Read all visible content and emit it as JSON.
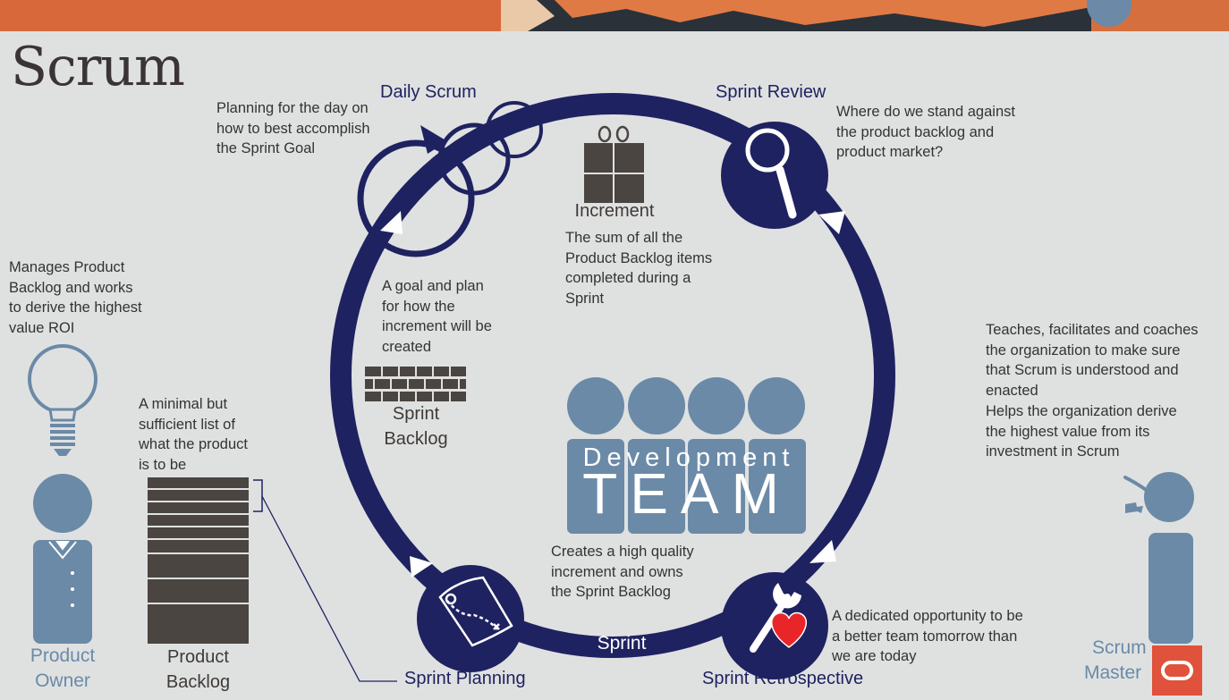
{
  "title": "Scrum",
  "events": {
    "daily_scrum": {
      "label": "Daily Scrum",
      "desc": [
        "Planning for the day on",
        "how to best accomplish",
        "the Sprint Goal"
      ]
    },
    "sprint_review": {
      "label": "Sprint Review",
      "desc": [
        "Where do we stand against",
        "the product backlog and",
        "product market?"
      ]
    },
    "sprint_planning": {
      "label": "Sprint Planning"
    },
    "sprint_retrospective": {
      "label": "Sprint Retrospective",
      "desc": [
        "A dedicated opportunity to be",
        "a better team tomorrow than",
        "we are today"
      ]
    },
    "sprint": {
      "label": "Sprint"
    }
  },
  "artifacts": {
    "increment": {
      "label": "Increment",
      "desc": [
        "The sum of all the",
        "Product Backlog items",
        "completed during a",
        "Sprint"
      ]
    },
    "sprint_backlog": {
      "label_line1": "Sprint",
      "label_line2": "Backlog",
      "desc": [
        "A goal and plan",
        "for how the",
        "increment will be",
        "created"
      ]
    },
    "product_backlog": {
      "label_line1": "Product",
      "label_line2": "Backlog",
      "desc": [
        "A minimal but",
        "sufficient list of",
        "what the product",
        "is to be"
      ]
    }
  },
  "roles": {
    "product_owner": {
      "label_line1": "Product",
      "label_line2": "Owner",
      "desc": [
        "Manages Product",
        "Backlog and works",
        "to derive the highest",
        "value ROI"
      ]
    },
    "development_team": {
      "word1": "Development",
      "word2": "TEAM",
      "desc": [
        "Creates a high quality",
        "increment and owns",
        "the Sprint Backlog"
      ]
    },
    "scrum_master": {
      "label_line1": "Scrum",
      "label_line2": "Master",
      "desc": [
        "Teaches, facilitates and coaches",
        "the organization to make sure",
        "that Scrum is understood and",
        "enacted",
        "Helps the organization derive",
        "the highest value from its",
        "investment in Scrum"
      ]
    }
  },
  "colors": {
    "navy": "#1f2260",
    "steel_blue": "#6b8aa7",
    "dark_gray": "#4a4540",
    "heart_red": "#e8262a",
    "logo_red": "#e0523b",
    "background": "#dfe1e1"
  }
}
